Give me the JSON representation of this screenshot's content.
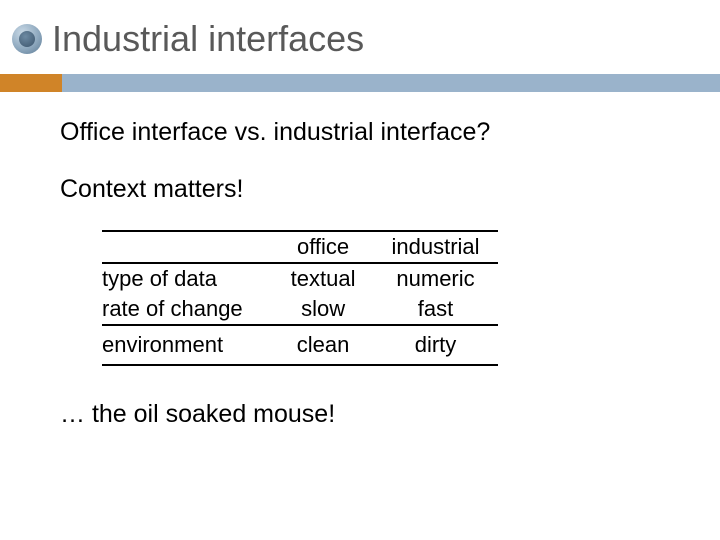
{
  "title": "Industrial interfaces",
  "subtitle1": "Office interface vs. industrial interface?",
  "subtitle2": "Context matters!",
  "footer": "… the oil soaked mouse!",
  "colors": {
    "title_text": "#595959",
    "rule_orange": "#d08428",
    "rule_blue": "#9ab3cb",
    "body_text": "#000000",
    "background": "#ffffff"
  },
  "fontsize": {
    "title": 36,
    "body": 25,
    "table": 22
  },
  "table": {
    "columns": [
      "",
      "office",
      "industrial"
    ],
    "rows": [
      [
        "type of data",
        "textual",
        "numeric"
      ],
      [
        "rate of change",
        "slow",
        "fast"
      ],
      [
        "environment",
        "clean",
        "dirty"
      ]
    ],
    "rule_thickness": 2,
    "col_align": [
      "left",
      "center",
      "center"
    ]
  }
}
